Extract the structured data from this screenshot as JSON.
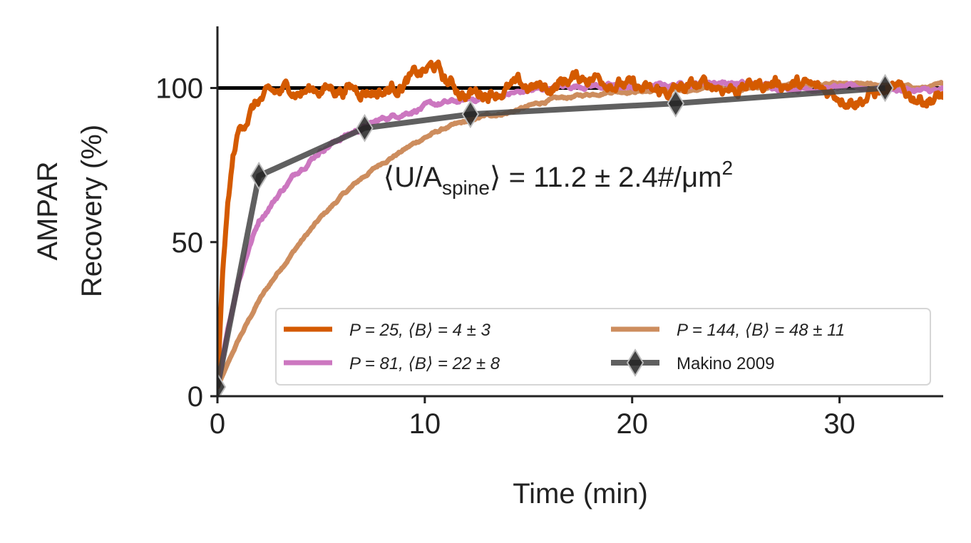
{
  "chart_data": {
    "type": "line",
    "xlabel": "Time (min)",
    "ylabel_lines": [
      "AMPAR",
      "Recovery (%)"
    ],
    "xlim": [
      0,
      35
    ],
    "ylim": [
      0,
      120
    ],
    "xticks": [
      0,
      10,
      20,
      30
    ],
    "yticks": [
      0,
      50,
      100
    ],
    "grid": false,
    "legend_placement": "lower-right",
    "reference_line": {
      "y": 100,
      "color": "#000000"
    },
    "annotation": {
      "text": "⟨U/A_spine⟩ = 11.2 ± 2.4#/μm²",
      "parts": {
        "open": "⟨U/A",
        "sub": "spine",
        "close": "⟩ = 11.2 ± 2.4#/μm",
        "sup": "2"
      },
      "x": 8,
      "y": 68
    },
    "series": [
      {
        "name": "P = 25, ⟨B⟩ = 4 ± 3",
        "color": "#d45a00",
        "kind": "simulation",
        "noise": 3.0,
        "x": [
          0,
          0.25,
          0.5,
          0.75,
          1,
          1.5,
          2,
          2.5,
          3,
          3.5,
          4,
          5,
          6,
          7,
          8,
          9,
          10,
          10.5,
          11,
          12,
          13,
          14,
          15,
          16,
          17,
          18,
          19,
          20,
          21,
          22,
          23,
          24,
          25,
          26,
          27,
          28,
          29,
          30,
          31,
          32,
          33,
          34,
          35
        ],
        "y": [
          3,
          40,
          62,
          77,
          85,
          92,
          96,
          97,
          98,
          100,
          99,
          100,
          100,
          100,
          99,
          102,
          105,
          107,
          102,
          98,
          99,
          100,
          100,
          100,
          103,
          104,
          103,
          100,
          98,
          99,
          100,
          101,
          100,
          101,
          102,
          101,
          99,
          98,
          97,
          99,
          98,
          97,
          97
        ]
      },
      {
        "name": "P = 81, ⟨B⟩ = 22 ± 8",
        "color": "#cc77c0",
        "kind": "simulation",
        "noise": 1.0,
        "x": [
          0,
          0.5,
          1,
          1.5,
          2,
          3,
          4,
          5,
          6,
          7,
          8,
          9,
          10,
          12,
          14,
          16,
          18,
          20,
          22,
          24,
          26,
          28,
          30,
          32,
          34,
          35
        ],
        "y": [
          3,
          22,
          37,
          48,
          57,
          66,
          74,
          80,
          84,
          87,
          90,
          92,
          94,
          96,
          98,
          100,
          101,
          100,
          101,
          102,
          101,
          100,
          100,
          100,
          99,
          99
        ]
      },
      {
        "name": "P = 144, ⟨B⟩ = 48 ± 11",
        "color": "#cd8d5e",
        "kind": "simulation",
        "noise": 0.6,
        "x": [
          0,
          1,
          2,
          3,
          4,
          5,
          6,
          7,
          8,
          9,
          10,
          11,
          12,
          13,
          14,
          15,
          16,
          17,
          18,
          19,
          20,
          22,
          24,
          26,
          28,
          30,
          32,
          34,
          35
        ],
        "y": [
          3,
          18,
          31,
          41,
          50,
          58,
          65,
          71,
          76,
          80,
          84,
          87,
          89,
          91,
          92,
          94,
          96,
          97,
          98,
          99,
          99,
          99,
          100,
          100,
          101,
          101,
          101,
          100,
          101
        ]
      },
      {
        "name": "Makino 2009",
        "color": "#444444",
        "kind": "experiment",
        "marker": "diamond",
        "x": [
          0,
          2,
          7.1,
          12.2,
          22.1,
          32.2
        ],
        "y": [
          3,
          71.5,
          87,
          91.5,
          95,
          100
        ]
      }
    ]
  }
}
